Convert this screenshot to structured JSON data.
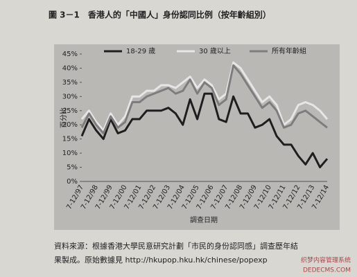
{
  "chart_data": {
    "type": "line",
    "title": "圖 3－1　香港人的「中國人」身份認同比例（按年齡組別）",
    "ylabel": "百分比",
    "xlabel": "調查日期",
    "categories": [
      "7-12/97",
      null,
      "7-12/98",
      null,
      "7-12/99",
      null,
      "7-12/00",
      null,
      "7-12/01",
      null,
      "7-12/02",
      null,
      "7-12/03",
      null,
      "7-12/04",
      null,
      "7-12/05",
      null,
      "7-12/06",
      null,
      "7-12/07",
      null,
      "7-12/08",
      null,
      "7-12/09",
      null,
      "7-12/10",
      null,
      "7-12/11",
      null,
      "7-12/12",
      null,
      "7-12/13",
      null,
      "7-12/14"
    ],
    "series": [
      {
        "name": "18-29 歲",
        "color": "#1e1e1e",
        "values": [
          16,
          22,
          18,
          15,
          22,
          17,
          18,
          22,
          22,
          25,
          25,
          25,
          26,
          24,
          20,
          29,
          22,
          31,
          31,
          22,
          21,
          30,
          24,
          24,
          19,
          20,
          22,
          16,
          13,
          13,
          9,
          6,
          10,
          5,
          8
        ]
      },
      {
        "name": "30 歲以上",
        "color": "#e6e6e6",
        "values": [
          22,
          25,
          21,
          18,
          24,
          20,
          23,
          30,
          30,
          32,
          32,
          34,
          34,
          33,
          35,
          37,
          33,
          36,
          34,
          29,
          31,
          42,
          40,
          36,
          32,
          28,
          30,
          27,
          20,
          22,
          27,
          28,
          27,
          25,
          22
        ]
      },
      {
        "name": "所有年齡組",
        "color": "#7d7d7d",
        "values": [
          19,
          24,
          20,
          17,
          23,
          19,
          21,
          28,
          28,
          30,
          31,
          32,
          33,
          31,
          32,
          36,
          31,
          35,
          33,
          27,
          29,
          41,
          38,
          34,
          30,
          26,
          28,
          25,
          19,
          20,
          24,
          25,
          23,
          21,
          19
        ]
      }
    ],
    "ylim": [
      0,
      45
    ],
    "yticks": [
      {
        "value": 0,
        "label": "0%"
      },
      {
        "value": 5,
        "label": "5%"
      },
      {
        "value": 10,
        "label": "10%"
      },
      {
        "value": 15,
        "label": "15%"
      },
      {
        "value": 20,
        "label": "20%"
      },
      {
        "value": 25,
        "label": "25%"
      },
      {
        "value": 30,
        "label": "30%"
      },
      {
        "value": 35,
        "label": "35%"
      },
      {
        "value": 40,
        "label": "40%"
      },
      {
        "value": 45,
        "label": "45%"
      }
    ],
    "grid": false,
    "legend": "top",
    "source": [
      "資料來源：根據香港大學民意研究計劃「市民的身份認同感」調查歷年結",
      "果製成。原始數據見 http://hkupop.hku.hk/chinese/popexp"
    ],
    "watermark": [
      "织梦内容管理系统",
      "DEDECMS.COM"
    ]
  }
}
